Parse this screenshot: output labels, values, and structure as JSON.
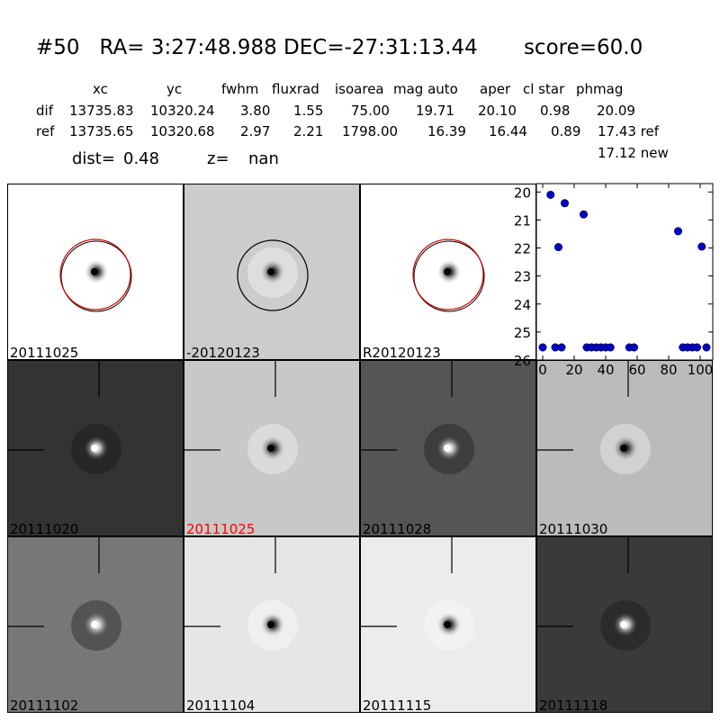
{
  "header": {
    "title": "#50   RA= 3:27:48.988 DEC=-27:31:13.44       score=60.0",
    "columns": [
      "xc",
      "yc",
      "fwhm",
      "fluxrad",
      "isoarea",
      "mag auto",
      "aper",
      "cl star",
      "phmag"
    ],
    "rows": [
      {
        "label": "dif",
        "values": [
          "13735.83",
          "10320.24",
          "3.80",
          "1.55",
          "75.00",
          "19.71",
          "20.10",
          "0.98",
          "20.09"
        ]
      },
      {
        "label": "ref",
        "values": [
          "13735.65",
          "10320.68",
          "2.97",
          "2.21",
          "1798.00",
          "16.39",
          "16.44",
          "0.89",
          "17.43 ref"
        ]
      }
    ],
    "extra_phmag": "17.12 new",
    "dist_label": "dist=",
    "dist_value": "0.48",
    "z_label": "z=",
    "z_value": "nan"
  },
  "top_panels": [
    {
      "label": "20111025",
      "bg": "#ffffff",
      "circle_color": "#cc0000"
    },
    {
      "label": "-20120123",
      "bg": "#cccccc",
      "circle_color": "#000000"
    },
    {
      "label": "R20120123",
      "bg": "#ffffff",
      "circle_color": "#cc0000"
    }
  ],
  "stamp_panels": [
    {
      "label": "20111020",
      "bg": "#333333",
      "highlight": false
    },
    {
      "label": "20111025",
      "bg": "#c8c8c8",
      "highlight": true,
      "highlight_color": "#ff0000"
    },
    {
      "label": "20111028",
      "bg": "#555555",
      "highlight": false
    },
    {
      "label": "20111030",
      "bg": "#bbbbbb",
      "highlight": false
    },
    {
      "label": "20111102",
      "bg": "#777777",
      "highlight": false
    },
    {
      "label": "20111104",
      "bg": "#e6e6e6",
      "highlight": false
    },
    {
      "label": "20111115",
      "bg": "#ececec",
      "highlight": false
    },
    {
      "label": "20111118",
      "bg": "#3a3a3a",
      "highlight": false
    }
  ],
  "chart_data": {
    "type": "scatter",
    "xlim": [
      -4,
      108
    ],
    "ylim": [
      26,
      19.7
    ],
    "y_inverted": true,
    "xticks": [
      "0",
      "20",
      "40",
      "60",
      "80",
      "100"
    ],
    "xtick_values": [
      0,
      20,
      40,
      60,
      80,
      100
    ],
    "yticks": [
      "20",
      "21",
      "22",
      "23",
      "24",
      "25",
      "26"
    ],
    "ytick_values": [
      20,
      21,
      22,
      23,
      24,
      25,
      26
    ],
    "marker_color": "#0000cc",
    "points": [
      [
        0,
        25.55
      ],
      [
        5,
        20.1
      ],
      [
        8,
        25.55
      ],
      [
        10,
        21.97
      ],
      [
        12,
        25.55
      ],
      [
        14,
        20.4
      ],
      [
        26,
        20.8
      ],
      [
        28,
        25.55
      ],
      [
        31,
        25.55
      ],
      [
        34,
        25.55
      ],
      [
        37,
        25.55
      ],
      [
        40,
        25.55
      ],
      [
        43,
        25.55
      ],
      [
        55,
        25.55
      ],
      [
        58,
        25.55
      ],
      [
        86,
        21.4
      ],
      [
        89,
        25.55
      ],
      [
        92,
        25.55
      ],
      [
        95,
        25.55
      ],
      [
        98,
        25.55
      ],
      [
        101,
        21.95
      ],
      [
        104,
        25.55
      ]
    ]
  }
}
